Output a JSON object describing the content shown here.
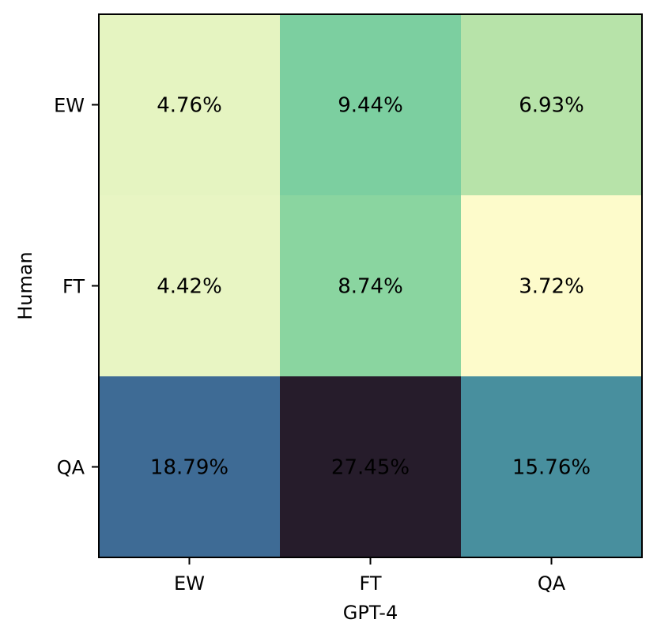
{
  "chart_data": {
    "type": "heatmap",
    "xlabel": "GPT-4",
    "ylabel": "Human",
    "x_categories": [
      "EW",
      "FT",
      "QA"
    ],
    "y_categories": [
      "EW",
      "FT",
      "QA"
    ],
    "values": [
      [
        4.76,
        9.44,
        6.93
      ],
      [
        4.42,
        8.74,
        3.72
      ],
      [
        18.79,
        27.45,
        15.76
      ]
    ],
    "value_labels": [
      [
        "4.76%",
        "9.44%",
        "6.93%"
      ],
      [
        "4.42%",
        "8.74%",
        "3.72%"
      ],
      [
        "18.79%",
        "27.45%",
        "15.76%"
      ]
    ],
    "colormap": "YlGnBu-like (light yellow low, dark navy high)",
    "cell_colors": [
      [
        "#e5f4c1",
        "#7ccfa0",
        "#b7e3a9"
      ],
      [
        "#e8f5c3",
        "#8ad5a0",
        "#fdfbcb"
      ],
      [
        "#3e6b95",
        "#261c2b",
        "#488f9e"
      ]
    ],
    "colorbar": false,
    "grid": false
  }
}
